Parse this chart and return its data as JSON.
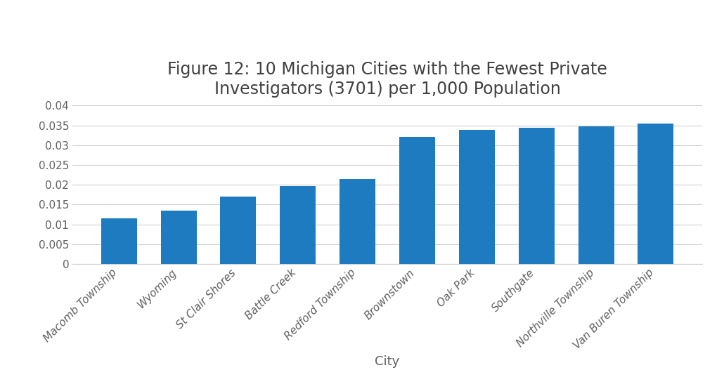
{
  "title": "Figure 12: 10 Michigan Cities with the Fewest Private\nInvestigators (3701) per 1,000 Population",
  "categories": [
    "Macomb Township",
    "Wyoming",
    "St Clair Shores",
    "Battle Creek",
    "Redford Township",
    "Brownstown",
    "Oak Park",
    "Southgate",
    "Northville Township",
    "Van Buren Township"
  ],
  "values": [
    0.0115,
    0.0135,
    0.017,
    0.0197,
    0.0214,
    0.032,
    0.0338,
    0.0344,
    0.0347,
    0.0354
  ],
  "bar_color": "#1f7bbf",
  "xlabel": "City",
  "ylabel": "",
  "ylim": [
    0,
    0.04
  ],
  "yticks": [
    0,
    0.005,
    0.01,
    0.015,
    0.02,
    0.025,
    0.03,
    0.035,
    0.04
  ],
  "background_color": "#ffffff",
  "title_fontsize": 17,
  "xlabel_fontsize": 13,
  "tick_fontsize": 11,
  "grid_color": "#d0d0d0",
  "title_color": "#404040",
  "label_color": "#606060"
}
